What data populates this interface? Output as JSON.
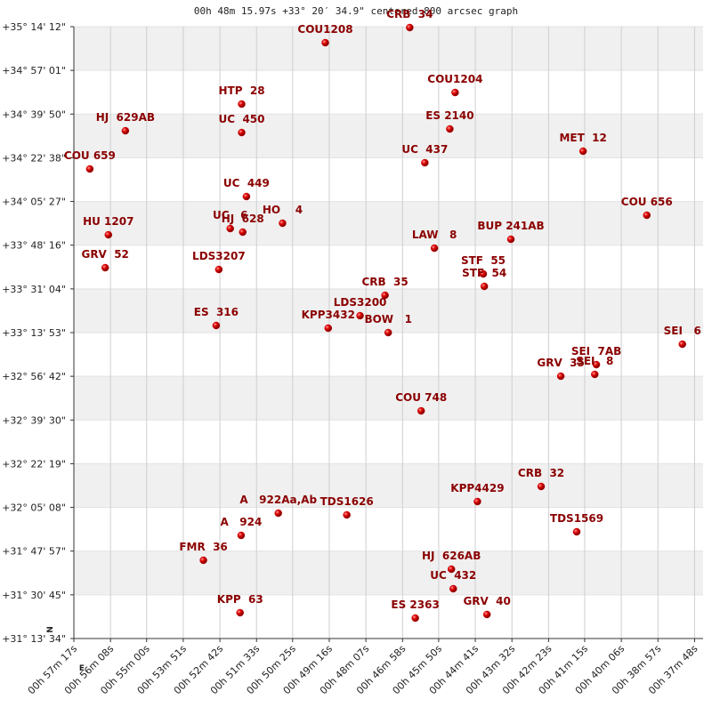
{
  "chart_data": {
    "type": "scatter",
    "title": "00h 48m 15.97s +33° 20′ 34.9\" centered 800 arcsec graph",
    "compass": {
      "north": "N",
      "east": "E"
    },
    "color": "#cc0000",
    "label_color": "#8b0000",
    "grid": true,
    "xlim": [
      3437,
      2252
    ],
    "ylim": [
      112414,
      126852
    ],
    "xticks": [
      {
        "value": 3437,
        "label": "00h 57m 17s"
      },
      {
        "value": 3368,
        "label": "00h 56m 08s"
      },
      {
        "value": 3300,
        "label": "00h 55m 00s"
      },
      {
        "value": 3231,
        "label": "00h 53m 51s"
      },
      {
        "value": 3162,
        "label": "00h 52m 42s"
      },
      {
        "value": 3093,
        "label": "00h 51m 33s"
      },
      {
        "value": 3025,
        "label": "00h 50m 25s"
      },
      {
        "value": 2956,
        "label": "00h 49m 16s"
      },
      {
        "value": 2887,
        "label": "00h 48m 07s"
      },
      {
        "value": 2818,
        "label": "00h 46m 58s"
      },
      {
        "value": 2750,
        "label": "00h 45m 50s"
      },
      {
        "value": 2681,
        "label": "00h 44m 41s"
      },
      {
        "value": 2612,
        "label": "00h 43m 32s"
      },
      {
        "value": 2543,
        "label": "00h 42m 23s"
      },
      {
        "value": 2475,
        "label": "00h 41m 15s"
      },
      {
        "value": 2406,
        "label": "00h 40m 06s"
      },
      {
        "value": 2337,
        "label": "00h 38m 57s"
      },
      {
        "value": 2268,
        "label": "00h 37m 48s"
      }
    ],
    "yticks": [
      {
        "value": 126852,
        "label": "+35° 14' 12\""
      },
      {
        "value": 125821,
        "label": "+34° 57' 01\""
      },
      {
        "value": 124790,
        "label": "+34° 39' 50\""
      },
      {
        "value": 123758,
        "label": "+34° 22' 38\""
      },
      {
        "value": 122727,
        "label": "+34° 05' 27\""
      },
      {
        "value": 121696,
        "label": "+33° 48' 16\""
      },
      {
        "value": 120664,
        "label": "+33° 31' 04\""
      },
      {
        "value": 119633,
        "label": "+33° 13' 53\""
      },
      {
        "value": 118602,
        "label": "+32° 56' 42\""
      },
      {
        "value": 117570,
        "label": "+32° 39' 30\""
      },
      {
        "value": 116539,
        "label": "+32° 22' 19\""
      },
      {
        "value": 115508,
        "label": "+32° 05' 08\""
      },
      {
        "value": 114477,
        "label": "+31° 47' 57\""
      },
      {
        "value": 113445,
        "label": "+31° 30' 45\""
      },
      {
        "value": 112414,
        "label": "+31° 13' 34\""
      }
    ],
    "labels": [
      "CRB  34",
      "COU1208",
      "COU1204",
      "HTP  28",
      "HJ  629AB",
      "UC  450",
      "ES 2140",
      "UC  437",
      "MET  12",
      "COU 659",
      "UC  449",
      "COU 656",
      "HU 1207",
      "UC   6",
      "HJ  628",
      "HO    4",
      "BUP 241AB",
      "LAW   8",
      "GRV  52",
      "LDS3207",
      "STF  55",
      "STF  54",
      "CRB  35",
      "LDS3200",
      "KPP3432",
      "BOW   1",
      "ES  316",
      "SEI   6",
      "SEI  7AB",
      "SEI   8",
      "GRV  35",
      "COU 748",
      "CRB  32",
      "KPP4429",
      "A   922Aa,Ab",
      "TDS1626",
      "A   924",
      "TDS1569",
      "FMR  36",
      "HJ  626AB",
      "UC  432",
      "KPP  63",
      "ES 2363",
      "GRV  40"
    ],
    "x": [
      2804.5,
      2963.5,
      2719,
      3121,
      3340,
      3121,
      2729,
      2776,
      2478,
      3407,
      3112,
      2358,
      3372,
      3142.5,
      3119,
      3044,
      2614,
      2758,
      3378,
      3164,
      2666,
      2664,
      2851,
      2898,
      2958,
      2845,
      3169,
      2291,
      2453,
      2456,
      2520,
      2783,
      2557,
      2677,
      3052,
      2923,
      3122,
      2490,
      3193,
      2726,
      2722.5,
      3124,
      2794,
      2659
    ],
    "y": [
      126831,
      126474,
      125299,
      125026,
      124396,
      124354,
      124438,
      123641,
      123914,
      123494,
      122844,
      122403,
      121941,
      122088,
      122004,
      122214,
      121836,
      121626,
      121165,
      121123,
      121018,
      120724,
      120514,
      120032,
      119738,
      119633,
      119801,
      119360,
      118877,
      118647,
      118605,
      117786,
      116002,
      115646,
      115373,
      115331,
      114848,
      114932,
      114261,
      114051,
      113589,
      113023,
      112897,
      112981
    ]
  }
}
